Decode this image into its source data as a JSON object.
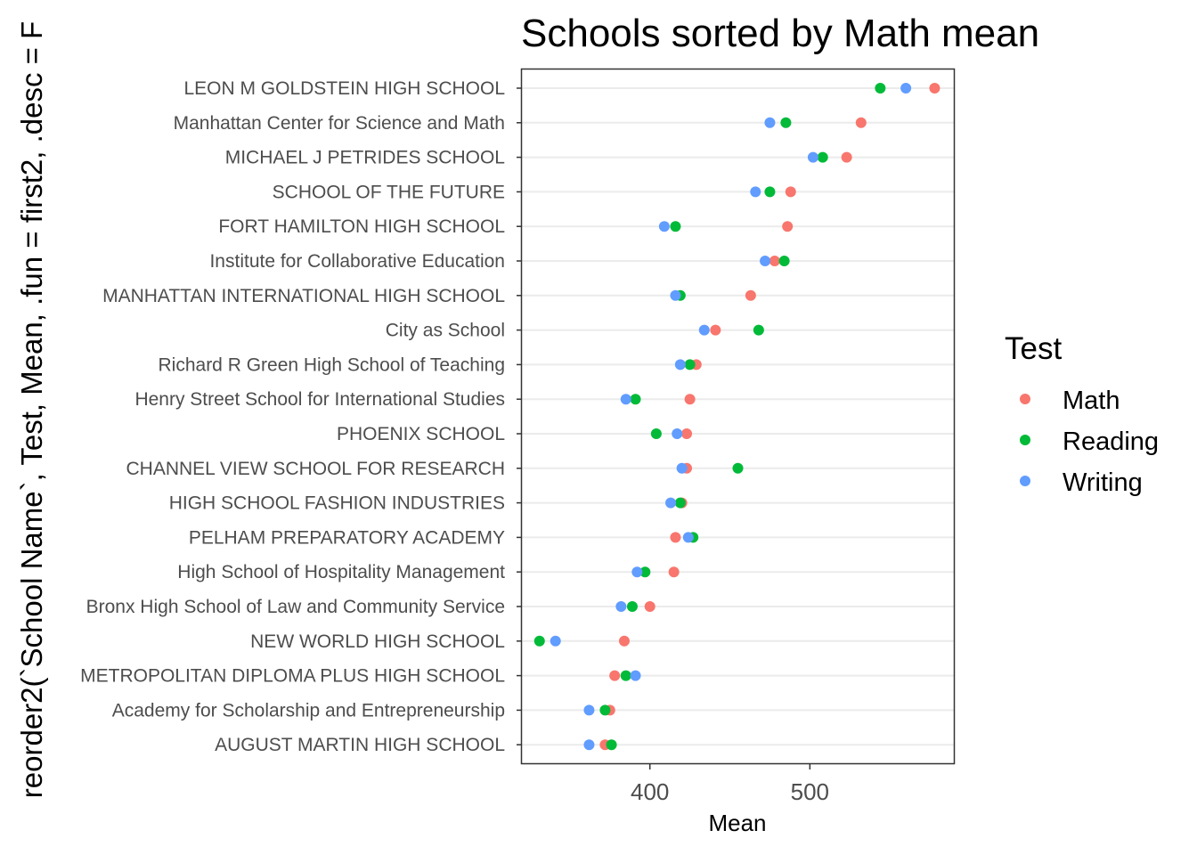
{
  "chart_data": {
    "type": "scatter",
    "title": "Schools sorted by Math mean",
    "xlabel": "Mean",
    "ylabel": "reorder2(`School Name`, Test, Mean, .fun = first2, .desc = F",
    "xlim": [
      320,
      590
    ],
    "xticks": [
      400,
      500
    ],
    "grid": "horizontal-major",
    "legend": {
      "title": "Test",
      "position": "right"
    },
    "categories": [
      "LEON M GOLDSTEIN HIGH SCHOOL",
      "Manhattan Center for Science and Math",
      "MICHAEL J PETRIDES SCHOOL",
      "SCHOOL OF THE FUTURE",
      "FORT HAMILTON HIGH SCHOOL",
      "Institute for Collaborative Education",
      "MANHATTAN INTERNATIONAL HIGH SCHOOL",
      "City as School",
      "Richard R Green High School of Teaching",
      "Henry Street School for International Studies",
      "PHOENIX SCHOOL",
      "CHANNEL VIEW SCHOOL FOR RESEARCH",
      "HIGH SCHOOL FASHION INDUSTRIES",
      "PELHAM PREPARATORY ACADEMY",
      "High School of Hospitality Management",
      "Bronx High School of Law and Community Service",
      "NEW WORLD HIGH SCHOOL",
      "METROPOLITAN DIPLOMA PLUS HIGH SCHOOL",
      "Academy for Scholarship and Entrepreneurship",
      "AUGUST MARTIN HIGH SCHOOL"
    ],
    "series": [
      {
        "name": "Math",
        "color": "#F8766D",
        "values": [
          578,
          532,
          523,
          488,
          486,
          478,
          463,
          441,
          429,
          425,
          423,
          423,
          420,
          416,
          415,
          400,
          384,
          378,
          375,
          372
        ]
      },
      {
        "name": "Reading",
        "color": "#00BA38",
        "values": [
          544,
          485,
          508,
          475,
          416,
          484,
          419,
          468,
          425,
          391,
          404,
          455,
          419,
          427,
          397,
          389,
          331,
          385,
          372,
          376
        ]
      },
      {
        "name": "Writing",
        "color": "#619CFF",
        "values": [
          560,
          475,
          502,
          466,
          409,
          472,
          416,
          434,
          419,
          385,
          417,
          420,
          413,
          424,
          392,
          382,
          341,
          391,
          362,
          362
        ]
      }
    ]
  }
}
